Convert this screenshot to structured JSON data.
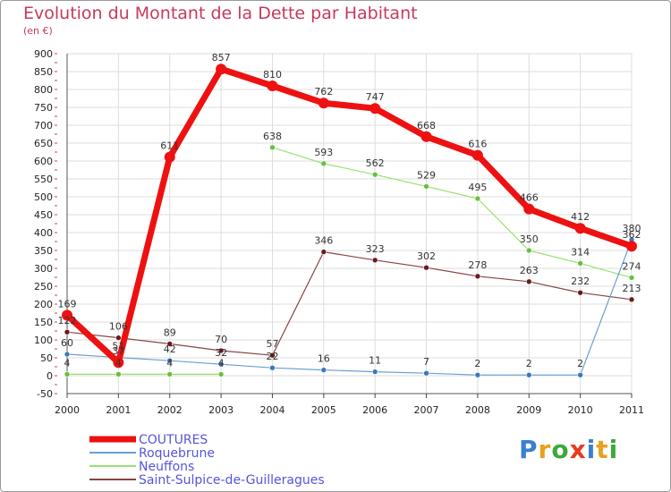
{
  "title": "Evolution du Montant de la Dette par Habitant",
  "unit": "(en €)",
  "logo": [
    "P",
    "r",
    "o",
    "x",
    "i",
    "t",
    "i"
  ],
  "logo_colors": [
    "#3a7fd0",
    "#e8a020",
    "#3aaa3a",
    "#e83a20",
    "#3a7fd0",
    "#e8a020",
    "#3aaa3a"
  ],
  "chart_data": {
    "type": "line",
    "title": "Evolution du Montant de la Dette par Habitant",
    "ylabel": "(en €)",
    "xlabel": "",
    "x": [
      "2000",
      "2001",
      "2002",
      "2003",
      "2004",
      "2005",
      "2006",
      "2007",
      "2008",
      "2009",
      "2010",
      "2011"
    ],
    "ylim": [
      -50,
      900
    ],
    "yticks": [
      -50,
      0,
      50,
      100,
      150,
      200,
      250,
      300,
      350,
      400,
      450,
      500,
      550,
      600,
      650,
      700,
      750,
      800,
      850,
      900
    ],
    "grid": true,
    "legend": "bottom",
    "series": [
      {
        "name": "COUTURES",
        "color": "#ee1111",
        "width": 7,
        "point_r": 6,
        "values": [
          169,
          37,
          611,
          857,
          810,
          762,
          747,
          668,
          616,
          466,
          412,
          362
        ],
        "labels": [
          "169",
          "37",
          "611",
          "857",
          "810",
          "762",
          "747",
          "668",
          "616",
          "466",
          "412",
          "362"
        ]
      },
      {
        "name": "Roquebrune",
        "color": "#6a9fd0",
        "point_color": "#3a78c0",
        "width": 1.2,
        "point_r": 3,
        "values": [
          60,
          51,
          42,
          32,
          22,
          16,
          11,
          7,
          2,
          2,
          2,
          380
        ],
        "labels": [
          "60",
          "51",
          "42",
          "32",
          "22",
          "16",
          "11",
          "7",
          "2",
          "2",
          "2",
          "380"
        ]
      },
      {
        "name": "Neuffons",
        "color": "#99e070",
        "point_color": "#66c040",
        "width": 1.2,
        "point_r": 3,
        "values": [
          4,
          4,
          4,
          4,
          638,
          593,
          562,
          529,
          495,
          350,
          314,
          274
        ],
        "labels": [
          "4",
          "4",
          "4",
          "4",
          "638",
          "593",
          "562",
          "529",
          "495",
          "350",
          "314",
          "274"
        ],
        "segments": [
          [
            0,
            3
          ],
          [
            4,
            11
          ]
        ]
      },
      {
        "name": "Saint-Sulpice-de-Guilleragues",
        "color": "#884444",
        "point_color": "#6a1a1a",
        "width": 1.2,
        "point_r": 3,
        "values": [
          122,
          106,
          89,
          70,
          57,
          346,
          323,
          302,
          278,
          263,
          232,
          213
        ],
        "labels": [
          "122",
          "106",
          "89",
          "70",
          "57",
          "346",
          "323",
          "302",
          "278",
          "263",
          "232",
          "213"
        ]
      }
    ]
  }
}
